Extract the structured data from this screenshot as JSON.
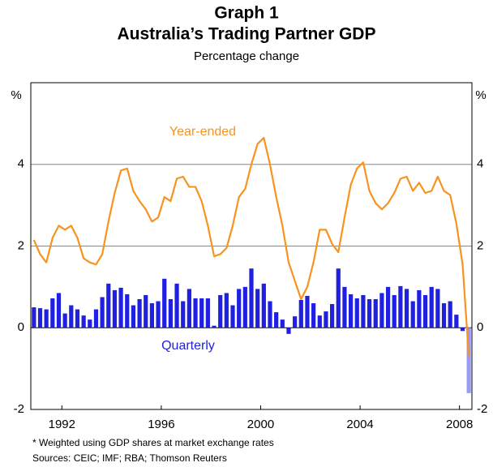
{
  "chart_data": {
    "type": "bar-line",
    "title": "Graph 1",
    "subtitle": "Australia’s Trading Partner GDP",
    "axis_note": "Percentage change",
    "y_label": "%",
    "y2_label": "%",
    "footnotes": [
      "*   Weighted using GDP shares at market exchange rates",
      "Sources: CEIC; IMF; RBA; Thomson Reuters"
    ],
    "x": [
      1991.375,
      1991.625,
      1991.875,
      1992.125,
      1992.375,
      1992.625,
      1992.875,
      1993.125,
      1993.375,
      1993.625,
      1993.875,
      1994.125,
      1994.375,
      1994.625,
      1994.875,
      1995.125,
      1995.375,
      1995.625,
      1995.875,
      1996.125,
      1996.375,
      1996.625,
      1996.875,
      1997.125,
      1997.375,
      1997.625,
      1997.875,
      1998.125,
      1998.375,
      1998.625,
      1998.875,
      1999.125,
      1999.375,
      1999.625,
      1999.875,
      2000.125,
      2000.375,
      2000.625,
      2000.875,
      2001.125,
      2001.375,
      2001.625,
      2001.875,
      2002.125,
      2002.375,
      2002.625,
      2002.875,
      2003.125,
      2003.375,
      2003.625,
      2003.875,
      2004.125,
      2004.375,
      2004.625,
      2004.875,
      2005.125,
      2005.375,
      2005.625,
      2005.875,
      2006.125,
      2006.375,
      2006.625,
      2006.875,
      2007.125,
      2007.375,
      2007.625,
      2007.875,
      2008.125,
      2008.375,
      2008.625,
      2008.875
    ],
    "series": [
      {
        "name": "Quarterly",
        "kind": "bar",
        "color": "#2020e0",
        "colors": [
          "#2020e0",
          "#2020e0",
          "#2020e0",
          "#2020e0",
          "#2020e0",
          "#2020e0",
          "#2020e0",
          "#2020e0",
          "#2020e0",
          "#2020e0",
          "#2020e0",
          "#2020e0",
          "#2020e0",
          "#2020e0",
          "#2020e0",
          "#2020e0",
          "#2020e0",
          "#2020e0",
          "#2020e0",
          "#2020e0",
          "#2020e0",
          "#2020e0",
          "#2020e0",
          "#2020e0",
          "#2020e0",
          "#2020e0",
          "#2020e0",
          "#2020e0",
          "#2020e0",
          "#2020e0",
          "#2020e0",
          "#2020e0",
          "#2020e0",
          "#2020e0",
          "#2020e0",
          "#2020e0",
          "#2020e0",
          "#2020e0",
          "#2020e0",
          "#2020e0",
          "#2020e0",
          "#2020e0",
          "#2020e0",
          "#2020e0",
          "#2020e0",
          "#2020e0",
          "#2020e0",
          "#2020e0",
          "#2020e0",
          "#2020e0",
          "#2020e0",
          "#2020e0",
          "#2020e0",
          "#2020e0",
          "#2020e0",
          "#2020e0",
          "#2020e0",
          "#2020e0",
          "#2020e0",
          "#2020e0",
          "#2020e0",
          "#2020e0",
          "#2020e0",
          "#2020e0",
          "#2020e0",
          "#2020e0",
          "#2020e0",
          "#2020e0",
          "#2020e0",
          "#2020e0",
          "#9a9af0"
        ],
        "values": [
          0.5,
          0.48,
          0.45,
          0.72,
          0.85,
          0.35,
          0.55,
          0.45,
          0.3,
          0.2,
          0.45,
          0.75,
          1.08,
          0.92,
          0.98,
          0.82,
          0.55,
          0.7,
          0.8,
          0.6,
          0.65,
          1.2,
          0.7,
          1.08,
          0.65,
          0.95,
          0.72,
          0.72,
          0.72,
          0.05,
          0.8,
          0.85,
          0.55,
          0.95,
          1.0,
          1.45,
          0.95,
          1.08,
          0.65,
          0.38,
          0.2,
          -0.15,
          0.28,
          0.68,
          0.78,
          0.6,
          0.3,
          0.4,
          0.58,
          1.45,
          1.0,
          0.82,
          0.72,
          0.8,
          0.7,
          0.7,
          0.85,
          1.0,
          0.8,
          1.02,
          0.95,
          0.65,
          0.92,
          0.8,
          1.0,
          0.95,
          0.6,
          0.65,
          0.32,
          -0.08,
          -1.6
        ]
      },
      {
        "name": "Year-ended",
        "kind": "line",
        "color": "#f7931e",
        "values": [
          2.15,
          1.8,
          1.6,
          2.2,
          2.5,
          2.4,
          2.5,
          2.2,
          1.7,
          1.6,
          1.55,
          1.8,
          2.6,
          3.3,
          3.85,
          3.9,
          3.35,
          3.1,
          2.9,
          2.6,
          2.7,
          3.2,
          3.1,
          3.65,
          3.7,
          3.45,
          3.45,
          3.1,
          2.5,
          1.75,
          1.8,
          1.95,
          2.5,
          3.2,
          3.4,
          4.0,
          4.5,
          4.65,
          4.0,
          3.2,
          2.5,
          1.6,
          1.15,
          0.7,
          1.0,
          1.6,
          2.4,
          2.4,
          2.05,
          1.85,
          2.7,
          3.5,
          3.9,
          4.05,
          3.35,
          3.05,
          2.9,
          3.05,
          3.3,
          3.65,
          3.7,
          3.35,
          3.55,
          3.3,
          3.35,
          3.7,
          3.35,
          3.25,
          2.55,
          1.55,
          -0.7
        ]
      }
    ],
    "xlim": [
      1991.25,
      2009
    ],
    "xticks": [
      {
        "value": 1992.5,
        "label": "1992"
      },
      {
        "value": 1996.5,
        "label": "1996"
      },
      {
        "value": 2000.5,
        "label": "2000"
      },
      {
        "value": 2004.5,
        "label": "2004"
      },
      {
        "value": 2008.5,
        "label": "2008"
      }
    ],
    "ylim": [
      -2,
      6
    ],
    "yticks": [
      -2,
      0,
      2,
      4
    ],
    "y2lim": [
      -2,
      6
    ],
    "y2ticks": [
      -2,
      0,
      2,
      4
    ],
    "grid": true
  }
}
